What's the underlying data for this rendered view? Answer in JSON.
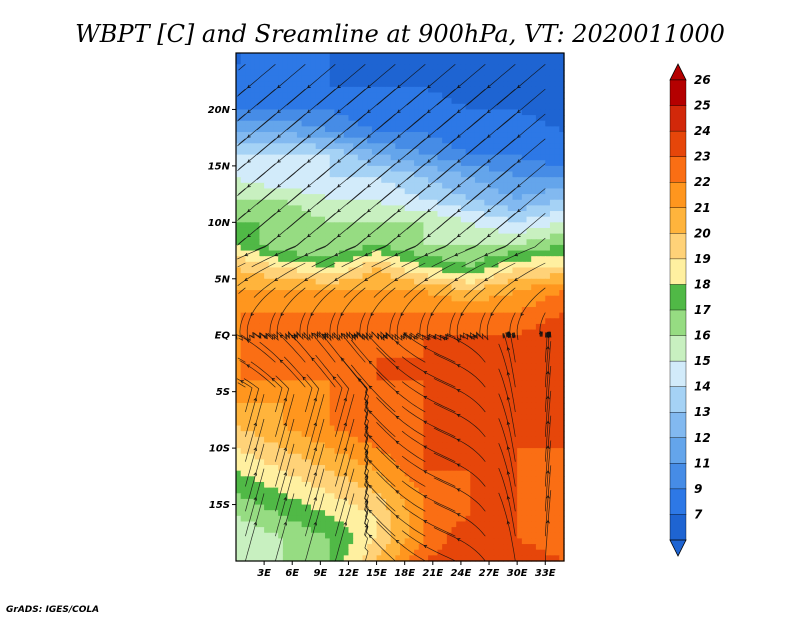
{
  "chart_data": {
    "type": "heatmap",
    "title": "WBPT [C] and Sreamline at 900hPa, VT: 2020011000",
    "variable": "Wet-bulb potential temperature with streamlines",
    "xlabel": "",
    "ylabel": "",
    "x_ticks": [
      {
        "value": 3,
        "label": "3E"
      },
      {
        "value": 6,
        "label": "6E"
      },
      {
        "value": 9,
        "label": "9E"
      },
      {
        "value": 12,
        "label": "12E"
      },
      {
        "value": 15,
        "label": "15E"
      },
      {
        "value": 18,
        "label": "18E"
      },
      {
        "value": 21,
        "label": "21E"
      },
      {
        "value": 24,
        "label": "24E"
      },
      {
        "value": 27,
        "label": "27E"
      },
      {
        "value": 30,
        "label": "30E"
      },
      {
        "value": 33,
        "label": "33E"
      }
    ],
    "y_ticks": [
      {
        "value": 20,
        "label": "20N"
      },
      {
        "value": 15,
        "label": "15N"
      },
      {
        "value": 10,
        "label": "10N"
      },
      {
        "value": 5,
        "label": "5N"
      },
      {
        "value": 0,
        "label": "EQ"
      },
      {
        "value": -5,
        "label": "5S"
      },
      {
        "value": -10,
        "label": "10S"
      },
      {
        "value": -15,
        "label": "15S"
      }
    ],
    "xlim": [
      0,
      35
    ],
    "ylim": [
      -20,
      25
    ],
    "colorbar": {
      "labels": [
        "7",
        "9",
        "11",
        "12",
        "13",
        "14",
        "15",
        "16",
        "17",
        "18",
        "19",
        "20",
        "21",
        "22",
        "23",
        "24",
        "25",
        "26"
      ],
      "colors": [
        "#1e64d2",
        "#2d78e6",
        "#468ce6",
        "#64a5eb",
        "#82b9f0",
        "#a5d2f5",
        "#d2ebfa",
        "#c8f0c0",
        "#96dc82",
        "#50b946",
        "#fff0a0",
        "#ffd278",
        "#ffb43c",
        "#ff961e",
        "#fa6e14",
        "#e6460a",
        "#d2280a",
        "#b40000"
      ],
      "extend": "both"
    },
    "field_grid": {
      "lats": [
        24,
        22,
        20,
        18,
        16,
        14,
        12,
        10,
        8,
        6,
        4,
        2,
        0,
        -2,
        -4,
        -6,
        -8,
        -10,
        -12,
        -14,
        -16,
        -18,
        -20
      ],
      "lons": [
        0,
        5,
        10,
        15,
        20,
        25,
        30,
        35
      ],
      "values": [
        [
          9,
          9,
          9,
          8,
          8,
          7,
          7,
          7
        ],
        [
          10,
          10,
          9,
          9,
          9,
          8,
          8,
          8
        ],
        [
          11,
          11,
          11,
          10,
          10,
          9,
          9,
          8
        ],
        [
          13,
          13,
          12,
          11,
          11,
          10,
          10,
          9
        ],
        [
          15,
          15,
          15,
          13,
          12,
          11,
          11,
          10
        ],
        [
          16,
          15,
          15,
          15,
          14,
          13,
          12,
          12
        ],
        [
          17,
          17,
          16,
          16,
          15,
          14,
          13,
          14
        ],
        [
          18,
          18,
          17,
          17,
          17,
          16,
          15,
          16
        ],
        [
          19,
          17,
          17,
          18,
          17,
          17,
          17,
          18
        ],
        [
          21,
          20,
          19,
          21,
          19,
          18,
          20,
          20
        ],
        [
          22,
          22,
          22,
          22,
          22,
          21,
          22,
          23
        ],
        [
          23,
          23,
          23,
          23,
          23,
          23,
          23,
          24
        ],
        [
          23,
          23,
          23,
          23,
          24,
          24,
          24,
          25
        ],
        [
          23,
          23,
          23,
          24,
          24,
          24,
          24,
          25
        ],
        [
          23,
          23,
          23,
          24,
          24,
          24,
          24,
          24
        ],
        [
          22,
          22,
          23,
          23,
          24,
          24,
          24,
          24
        ],
        [
          21,
          22,
          23,
          24,
          24,
          24,
          24,
          24
        ],
        [
          20,
          21,
          22,
          23,
          24,
          24,
          24,
          24
        ],
        [
          19,
          20,
          21,
          22,
          24,
          24,
          24,
          23
        ],
        [
          18,
          19,
          20,
          21,
          23,
          24,
          24,
          23
        ],
        [
          17,
          18,
          19,
          20,
          23,
          24,
          24,
          23
        ],
        [
          16,
          17,
          18,
          20,
          23,
          25,
          24,
          23
        ],
        [
          17,
          17,
          18,
          21,
          24,
          25,
          25,
          24
        ]
      ]
    },
    "streamlines": "present",
    "grid": false
  },
  "footer": {
    "credit": "GrADS: IGES/COLA"
  }
}
